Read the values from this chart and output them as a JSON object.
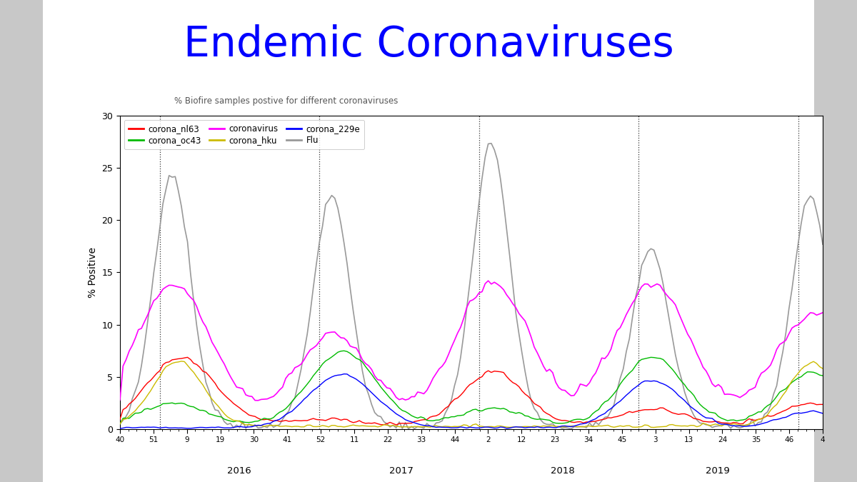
{
  "title": "Endemic Coronaviruses",
  "title_color": "#0000FF",
  "title_fontsize": 42,
  "subtitle": "% Biofire samples postive for different coronaviruses",
  "ylabel": "% Positive",
  "ylim": [
    0,
    30
  ],
  "yticks": [
    0,
    5,
    10,
    15,
    20,
    25,
    30
  ],
  "background_color": "#ffffff",
  "outer_bg": "#d0d0d0",
  "x_tick_labels": [
    "40",
    "51",
    "9",
    "19",
    "30",
    "41",
    "52",
    "11",
    "22",
    "33",
    "44",
    "2",
    "12",
    "23",
    "34",
    "45",
    "3",
    "13",
    "24",
    "35",
    "46",
    "4"
  ],
  "year_labels": [
    "2016",
    "2017",
    "2018",
    "2019"
  ],
  "series": {
    "corona_nl63": {
      "color": "#FF0000",
      "lw": 1.0
    },
    "corona_oc43": {
      "color": "#00BB00",
      "lw": 1.0
    },
    "coronavirus": {
      "color": "#FF00FF",
      "lw": 1.2
    },
    "corona_hku": {
      "color": "#CCBB00",
      "lw": 1.0
    },
    "corona_229e": {
      "color": "#0000FF",
      "lw": 1.0
    },
    "Flu": {
      "color": "#999999",
      "lw": 1.2
    }
  }
}
